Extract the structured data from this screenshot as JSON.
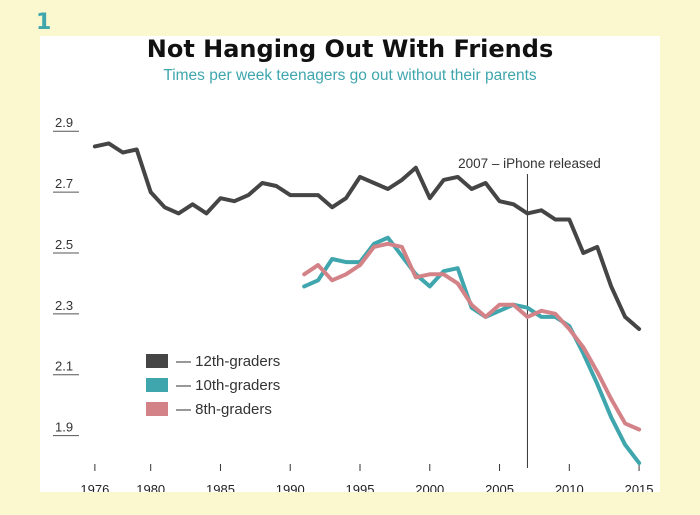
{
  "figure_number": "1",
  "chart_data": {
    "type": "line",
    "title": "Not Hanging Out With Friends",
    "subtitle": "Times per week teenagers go out without their parents",
    "xlabel": "",
    "ylabel": "",
    "xlim": [
      1973.5,
      2016.5
    ],
    "ylim": [
      1.8,
      2.95
    ],
    "x_ticks": [
      1976,
      1980,
      1985,
      1990,
      1995,
      2000,
      2005,
      2010,
      2015
    ],
    "x_tick_labels": [
      "1976",
      "1980",
      "1985",
      "1990",
      "1995",
      "2000",
      "2005",
      "2010",
      "2015"
    ],
    "y_ticks": [
      1.9,
      2.1,
      2.3,
      2.5,
      2.7,
      2.9
    ],
    "y_tick_labels": [
      "1.9",
      "2.1",
      "2.3",
      "2.5",
      "2.7",
      "2.9"
    ],
    "grid": false,
    "legend_position": "bottom-left",
    "annotation": {
      "x": 2007,
      "label": "2007 – iPhone released"
    },
    "series": [
      {
        "name": "— 12th-graders",
        "color": "#454545",
        "x": [
          1976,
          1977,
          1978,
          1979,
          1980,
          1981,
          1982,
          1983,
          1984,
          1985,
          1986,
          1987,
          1988,
          1989,
          1990,
          1991,
          1992,
          1993,
          1994,
          1995,
          1996,
          1997,
          1998,
          1999,
          2000,
          2001,
          2002,
          2003,
          2004,
          2005,
          2006,
          2007,
          2008,
          2009,
          2010,
          2011,
          2012,
          2013,
          2014,
          2015
        ],
        "values": [
          2.85,
          2.86,
          2.83,
          2.84,
          2.7,
          2.65,
          2.63,
          2.66,
          2.63,
          2.68,
          2.67,
          2.69,
          2.73,
          2.72,
          2.69,
          2.69,
          2.69,
          2.65,
          2.68,
          2.75,
          2.73,
          2.71,
          2.74,
          2.78,
          2.68,
          2.74,
          2.75,
          2.71,
          2.73,
          2.67,
          2.66,
          2.63,
          2.64,
          2.61,
          2.61,
          2.5,
          2.52,
          2.39,
          2.29,
          2.25
        ]
      },
      {
        "name": "— 10th-graders",
        "color": "#3fa6ad",
        "x": [
          1991,
          1992,
          1993,
          1994,
          1995,
          1996,
          1997,
          1998,
          1999,
          2000,
          2001,
          2002,
          2003,
          2004,
          2005,
          2006,
          2007,
          2008,
          2009,
          2010,
          2011,
          2012,
          2013,
          2014,
          2015
        ],
        "values": [
          2.39,
          2.41,
          2.48,
          2.47,
          2.47,
          2.53,
          2.55,
          2.49,
          2.43,
          2.39,
          2.44,
          2.45,
          2.32,
          2.29,
          2.31,
          2.33,
          2.32,
          2.29,
          2.29,
          2.26,
          2.17,
          2.07,
          1.96,
          1.87,
          1.81
        ]
      },
      {
        "name": "— 8th-graders",
        "color": "#d38388",
        "x": [
          1991,
          1992,
          1993,
          1994,
          1995,
          1996,
          1997,
          1998,
          1999,
          2000,
          2001,
          2002,
          2003,
          2004,
          2005,
          2006,
          2007,
          2008,
          2009,
          2010,
          2011,
          2012,
          2013,
          2014,
          2015
        ],
        "values": [
          2.43,
          2.46,
          2.41,
          2.43,
          2.46,
          2.52,
          2.53,
          2.52,
          2.42,
          2.43,
          2.43,
          2.4,
          2.33,
          2.29,
          2.33,
          2.33,
          2.29,
          2.31,
          2.3,
          2.25,
          2.19,
          2.11,
          2.02,
          1.94,
          1.92
        ]
      }
    ]
  }
}
